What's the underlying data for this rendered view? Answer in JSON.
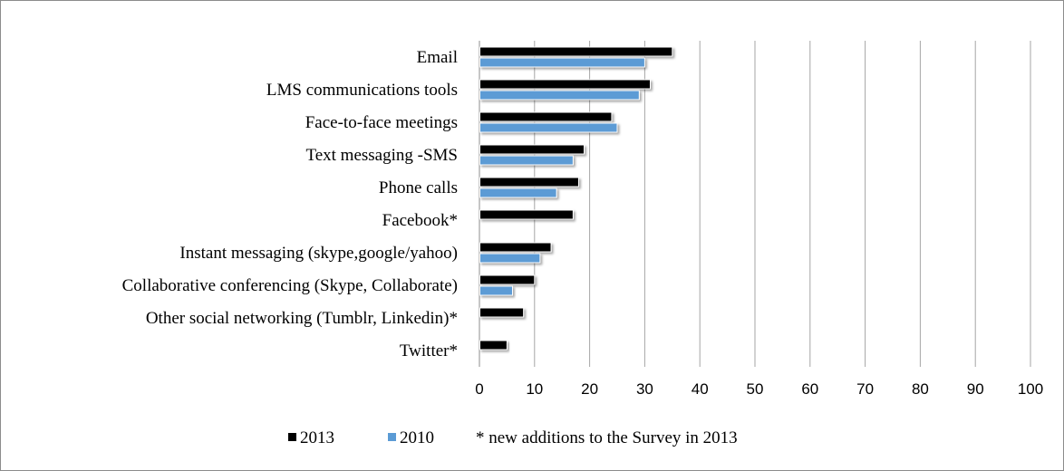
{
  "chart_data": {
    "type": "bar",
    "orientation": "horizontal",
    "title": "",
    "xlabel": "",
    "ylabel": "",
    "xlim": [
      0,
      100
    ],
    "x_ticks": [
      0,
      10,
      20,
      30,
      40,
      50,
      60,
      70,
      80,
      90,
      100
    ],
    "grid": "vertical",
    "legend_position": "bottom",
    "categories": [
      "Email",
      "LMS communications tools",
      "Face-to-face meetings",
      "Text messaging -SMS",
      "Phone calls",
      "Facebook*",
      "Instant messaging (skype,google/yahoo)",
      "Collaborative conferencing  (Skype, Collaborate)",
      "Other social networking (Tumblr, Linkedin)*",
      "Twitter*"
    ],
    "series": [
      {
        "name": "2013",
        "color": "#000000",
        "values": [
          35,
          31,
          24,
          19,
          18,
          17,
          13,
          10,
          8,
          5
        ]
      },
      {
        "name": "2010",
        "color": "#5b9bd5",
        "values": [
          30,
          29,
          25,
          17,
          14,
          null,
          11,
          6,
          null,
          null
        ]
      }
    ],
    "legend_note": "* new additions to the Survey in 2013"
  }
}
